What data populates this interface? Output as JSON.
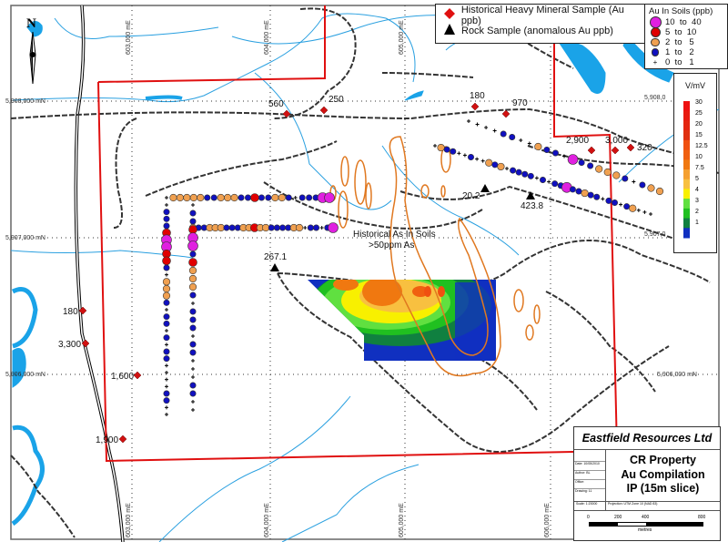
{
  "legend": {
    "heavy_mineral": "Historical Heavy Mineral Sample (Au ppb)",
    "rock": "Rock Sample (anomalous Au ppb)",
    "soils_title": "Au In Soils (ppb)",
    "soil_classes": [
      {
        "code": "m",
        "label": "10  to  40",
        "color": "#e020e0"
      },
      {
        "code": "r",
        "label": "5  to  10",
        "color": "#e00000"
      },
      {
        "code": "o",
        "label": "2  to   5",
        "color": "#f0a050"
      },
      {
        "code": "b",
        "label": "1  to   2",
        "color": "#1010c0"
      },
      {
        "code": "p",
        "label": "0  to   1",
        "color": "#000000"
      }
    ]
  },
  "color_scale": {
    "title": "V/mV",
    "ticks": [
      "30",
      "25",
      "20",
      "15",
      "12.5",
      "10",
      "7.5",
      "5",
      "4",
      "3",
      "2",
      "1"
    ],
    "colors": [
      "#ee1111",
      "#e81a10",
      "#e42510",
      "#e03010",
      "#f05010",
      "#f06010",
      "#f07810",
      "#f5a030",
      "#f8c040",
      "#f8f000",
      "#60e040",
      "#20c020",
      "#108040",
      "#1030c0"
    ]
  },
  "north_arrow": "N",
  "grid": {
    "eastings": [
      "603,000 mE",
      "604,000 mE",
      "605,000 mE",
      "606,000 mE"
    ],
    "northings": [
      "5,908,000 mN",
      "5,907,000 mN",
      "5,906,000 mN"
    ],
    "right_northings": [
      "5,908,0",
      "5,907,0",
      "5,906,000 mN"
    ]
  },
  "heavy_mineral_samples": [
    "560",
    "250",
    "180",
    "970",
    "2,900",
    "3,000",
    "320",
    "180",
    "3,300",
    "1,600",
    "1,900"
  ],
  "rock_samples": [
    "267.1",
    "20.2",
    "423.8"
  ],
  "annotation": {
    "line1": "Historical As In Soils",
    "line2": ">50ppm As"
  },
  "soil_lines": [
    "pooooobbooobbrbboobpbbbmm",
    "obbooobbbooroobbbboopbbpbm",
    "pbbbrmmrrbpooobpbbpbpbbppppbbpp",
    "pbbrmmbrooobpbbbpbbpppbbpp",
    "pobbppbppobopbbbbpbpbbmbbobbpbbpboppp",
    "ppppbbppobbpmbbooobpboo"
  ],
  "title_block": {
    "company": "Eastfield Resources Ltd",
    "title1": "CR Property",
    "title2": "Au Compilation",
    "title3": "IP (15m slice)",
    "meta": [
      "Date: 10/05/2010",
      "Author: BL",
      "Office:",
      "Drawing: 11"
    ],
    "scale": "Scale: 1:20000",
    "projection": "Projection: UTM Zone 10 (NAD 83)",
    "scale_ticks": [
      "0",
      "200",
      "400",
      "800"
    ],
    "scale_unit": "metres"
  }
}
